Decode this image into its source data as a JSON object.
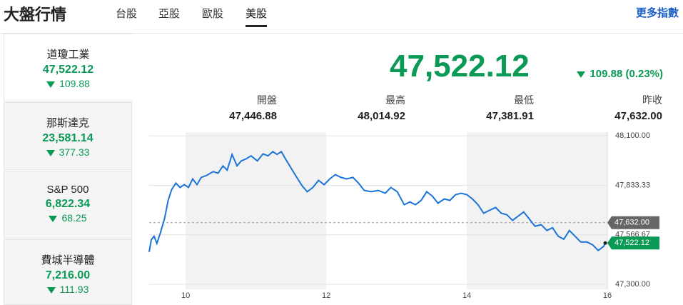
{
  "header": {
    "title": "大盤行情",
    "tabs": [
      "台股",
      "亞股",
      "歐股",
      "美股"
    ],
    "more": "更多指數"
  },
  "sidebar": [
    {
      "name": "道瓊工業",
      "value": "47,522.12",
      "change": "109.88"
    },
    {
      "name": "那斯達克",
      "value": "23,581.14",
      "change": "377.33"
    },
    {
      "name": "S&P 500",
      "value": "6,822.34",
      "change": "68.25"
    },
    {
      "name": "費城半導體",
      "value": "7,216.00",
      "change": "111.93"
    }
  ],
  "quote": {
    "price": "47,522.12",
    "change": "109.88 (0.23%)",
    "stats": [
      {
        "label": "開盤",
        "value": "47,446.88"
      },
      {
        "label": "最高",
        "value": "48,014.92"
      },
      {
        "label": "最低",
        "value": "47,381.91"
      },
      {
        "label": "昨收",
        "value": "47,632.00"
      }
    ]
  },
  "chart_data": {
    "type": "line",
    "color": "#1b74d8",
    "x": [
      9.48,
      9.51,
      9.55,
      9.59,
      9.64,
      9.7,
      9.75,
      9.8,
      9.86,
      9.92,
      9.98,
      10.04,
      10.1,
      10.16,
      10.22,
      10.3,
      10.39,
      10.46,
      10.53,
      10.59,
      10.66,
      10.73,
      10.79,
      10.86,
      10.93,
      11.02,
      11.1,
      11.17,
      11.24,
      11.3,
      11.36,
      11.42,
      11.5,
      11.58,
      11.66,
      11.73,
      11.81,
      11.89,
      11.97,
      12.05,
      12.13,
      12.21,
      12.29,
      12.38,
      12.46,
      12.54,
      12.64,
      12.74,
      12.84,
      12.92,
      13.01,
      13.11,
      13.19,
      13.27,
      13.35,
      13.43,
      13.51,
      13.59,
      13.68,
      13.76,
      13.84,
      13.92,
      14.0,
      14.08,
      14.16,
      14.24,
      14.32,
      14.41,
      14.49,
      14.57,
      14.65,
      14.73,
      14.81,
      14.89,
      14.97,
      15.06,
      15.14,
      15.22,
      15.3,
      15.38,
      15.46,
      15.54,
      15.62,
      15.71,
      15.79,
      15.87,
      15.95,
      15.97
    ],
    "values": [
      47474,
      47540,
      47559,
      47520,
      47578,
      47656,
      47752,
      47810,
      47845,
      47822,
      47837,
      47822,
      47868,
      47837,
      47876,
      47887,
      47907,
      47899,
      47938,
      47915,
      48000,
      47938,
      47965,
      47976,
      47992,
      47965,
      48003,
      47992,
      48015,
      48000,
      48015,
      47976,
      47926,
      47876,
      47829,
      47799,
      47822,
      47860,
      47837,
      47868,
      47891,
      47876,
      47868,
      47876,
      47845,
      47806,
      47799,
      47806,
      47791,
      47822,
      47799,
      47729,
      47744,
      47729,
      47752,
      47799,
      47775,
      47737,
      47760,
      47752,
      47783,
      47791,
      47783,
      47760,
      47729,
      47683,
      47698,
      47714,
      47683,
      47675,
      47644,
      47667,
      47690,
      47652,
      47613,
      47621,
      47590,
      47605,
      47559,
      47543,
      47590,
      47559,
      47528,
      47528,
      47513,
      47482,
      47505,
      47522.12
    ],
    "xlim": [
      9.48,
      16
    ],
    "xticks": [
      10,
      12,
      14,
      16
    ],
    "ylim": [
      47273,
      48120
    ],
    "yticks": [
      {
        "value": 47300,
        "label": "47,300.00"
      },
      {
        "value": 47566.67,
        "label": "47,566.67"
      },
      {
        "value": 47833.33,
        "label": "47,833.33"
      },
      {
        "value": 48100,
        "label": "48,100.00"
      }
    ],
    "grid": true,
    "reference_line": {
      "value": 47632,
      "label": "47,632.00"
    },
    "price_tag": {
      "value": 47522.12,
      "label": "47,522.12"
    }
  }
}
